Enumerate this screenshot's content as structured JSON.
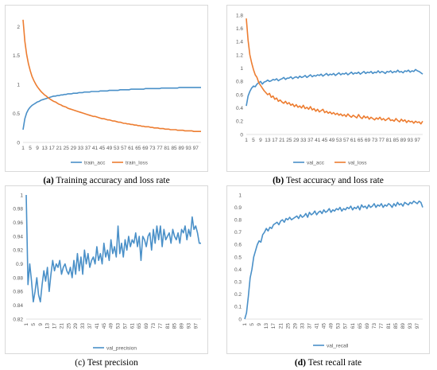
{
  "charts": [
    {
      "id": "a",
      "caption_letter": "(a)",
      "caption_text": " Training accuracy and loss rate",
      "chart_data": {
        "type": "line",
        "ylim": [
          0,
          2.2
        ],
        "yticks": [
          "0",
          "0.5",
          "1",
          "1.5",
          "2"
        ],
        "ytick_values": [
          0,
          0.5,
          1,
          1.5,
          2
        ],
        "xticks": [
          "1",
          "5",
          "9",
          "13",
          "17",
          "21",
          "25",
          "29",
          "33",
          "37",
          "41",
          "45",
          "49",
          "53",
          "57",
          "61",
          "65",
          "69",
          "73",
          "77",
          "81",
          "85",
          "89",
          "93",
          "97"
        ],
        "grid": false,
        "legend": "bottom",
        "series": [
          {
            "name": "train_acc",
            "color": "#4a90c8",
            "values": [
              0.22,
              0.41,
              0.51,
              0.57,
              0.61,
              0.64,
              0.66,
              0.68,
              0.7,
              0.71,
              0.73,
              0.74,
              0.75,
              0.76,
              0.77,
              0.78,
              0.79,
              0.8,
              0.8,
              0.81,
              0.81,
              0.82,
              0.82,
              0.83,
              0.83,
              0.84,
              0.84,
              0.84,
              0.85,
              0.85,
              0.85,
              0.86,
              0.86,
              0.86,
              0.87,
              0.87,
              0.87,
              0.87,
              0.88,
              0.88,
              0.88,
              0.88,
              0.88,
              0.89,
              0.89,
              0.89,
              0.89,
              0.89,
              0.9,
              0.9,
              0.9,
              0.9,
              0.9,
              0.9,
              0.91,
              0.91,
              0.91,
              0.91,
              0.91,
              0.91,
              0.92,
              0.92,
              0.92,
              0.92,
              0.92,
              0.92,
              0.92,
              0.92,
              0.93,
              0.93,
              0.93,
              0.93,
              0.93,
              0.93,
              0.93,
              0.93,
              0.93,
              0.94,
              0.94,
              0.94,
              0.94,
              0.94,
              0.94,
              0.94,
              0.94,
              0.94,
              0.94,
              0.95,
              0.95,
              0.95,
              0.95,
              0.95,
              0.95,
              0.95,
              0.95,
              0.95,
              0.95,
              0.95,
              0.95,
              0.95
            ]
          },
          {
            "name": "train_loss",
            "color": "#ed7d31",
            "values": [
              2.12,
              1.75,
              1.52,
              1.36,
              1.24,
              1.14,
              1.07,
              1.01,
              0.96,
              0.92,
              0.88,
              0.85,
              0.82,
              0.8,
              0.77,
              0.75,
              0.73,
              0.71,
              0.7,
              0.68,
              0.66,
              0.65,
              0.63,
              0.62,
              0.61,
              0.59,
              0.58,
              0.57,
              0.56,
              0.55,
              0.54,
              0.53,
              0.52,
              0.51,
              0.5,
              0.49,
              0.48,
              0.47,
              0.46,
              0.45,
              0.45,
              0.44,
              0.43,
              0.42,
              0.41,
              0.41,
              0.4,
              0.39,
              0.39,
              0.38,
              0.37,
              0.37,
              0.36,
              0.35,
              0.35,
              0.34,
              0.33,
              0.33,
              0.32,
              0.32,
              0.31,
              0.31,
              0.3,
              0.3,
              0.29,
              0.29,
              0.28,
              0.28,
              0.27,
              0.27,
              0.27,
              0.26,
              0.26,
              0.25,
              0.25,
              0.25,
              0.24,
              0.24,
              0.24,
              0.23,
              0.23,
              0.23,
              0.22,
              0.22,
              0.22,
              0.22,
              0.21,
              0.21,
              0.21,
              0.21,
              0.2,
              0.2,
              0.2,
              0.2,
              0.2,
              0.19,
              0.19,
              0.19,
              0.19,
              0.19
            ]
          }
        ]
      }
    },
    {
      "id": "b",
      "caption_letter": "(b)",
      "caption_text": " Test accuracy and loss rate",
      "chart_data": {
        "type": "line",
        "ylim": [
          0,
          1.8
        ],
        "yticks": [
          "0",
          "0.2",
          "0.4",
          "0.6",
          "0.8",
          "1",
          "1.2",
          "1.4",
          "1.6",
          "1.8"
        ],
        "ytick_values": [
          0,
          0.2,
          0.4,
          0.6,
          0.8,
          1,
          1.2,
          1.4,
          1.6,
          1.8
        ],
        "xticks": [
          "1",
          "5",
          "9",
          "13",
          "17",
          "21",
          "25",
          "29",
          "33",
          "37",
          "41",
          "45",
          "49",
          "53",
          "57",
          "61",
          "65",
          "69",
          "73",
          "77",
          "81",
          "85",
          "89",
          "93",
          "97"
        ],
        "grid": false,
        "legend": "bottom",
        "series": [
          {
            "name": "val_acc",
            "color": "#4a90c8",
            "values": [
              0.43,
              0.58,
              0.65,
              0.7,
              0.73,
              0.72,
              0.76,
              0.78,
              0.8,
              0.76,
              0.79,
              0.8,
              0.82,
              0.8,
              0.81,
              0.83,
              0.82,
              0.84,
              0.81,
              0.83,
              0.84,
              0.86,
              0.83,
              0.85,
              0.85,
              0.87,
              0.84,
              0.86,
              0.87,
              0.85,
              0.88,
              0.86,
              0.87,
              0.89,
              0.86,
              0.88,
              0.9,
              0.87,
              0.89,
              0.88,
              0.9,
              0.89,
              0.91,
              0.88,
              0.9,
              0.92,
              0.89,
              0.91,
              0.9,
              0.92,
              0.89,
              0.91,
              0.93,
              0.9,
              0.92,
              0.91,
              0.93,
              0.9,
              0.92,
              0.94,
              0.91,
              0.93,
              0.92,
              0.94,
              0.91,
              0.93,
              0.95,
              0.92,
              0.94,
              0.93,
              0.95,
              0.92,
              0.94,
              0.93,
              0.96,
              0.93,
              0.95,
              0.94,
              0.92,
              0.95,
              0.94,
              0.96,
              0.93,
              0.95,
              0.94,
              0.97,
              0.94,
              0.95,
              0.93,
              0.96,
              0.95,
              0.97,
              0.94,
              0.96,
              0.95,
              0.98,
              0.96,
              0.95,
              0.93,
              0.91
            ]
          },
          {
            "name": "val_loss",
            "color": "#ed7d31",
            "values": [
              1.75,
              1.42,
              1.2,
              1.08,
              0.98,
              0.9,
              0.86,
              0.78,
              0.74,
              0.7,
              0.66,
              0.63,
              0.6,
              0.62,
              0.56,
              0.58,
              0.53,
              0.55,
              0.5,
              0.52,
              0.49,
              0.47,
              0.5,
              0.46,
              0.48,
              0.44,
              0.46,
              0.42,
              0.45,
              0.41,
              0.43,
              0.4,
              0.44,
              0.39,
              0.41,
              0.38,
              0.42,
              0.37,
              0.39,
              0.35,
              0.38,
              0.34,
              0.36,
              0.38,
              0.33,
              0.35,
              0.32,
              0.34,
              0.31,
              0.33,
              0.3,
              0.32,
              0.29,
              0.31,
              0.28,
              0.3,
              0.27,
              0.31,
              0.28,
              0.26,
              0.29,
              0.27,
              0.25,
              0.3,
              0.26,
              0.24,
              0.28,
              0.25,
              0.27,
              0.23,
              0.26,
              0.24,
              0.22,
              0.25,
              0.23,
              0.26,
              0.22,
              0.24,
              0.21,
              0.23,
              0.25,
              0.21,
              0.22,
              0.2,
              0.24,
              0.21,
              0.19,
              0.23,
              0.2,
              0.22,
              0.18,
              0.21,
              0.19,
              0.2,
              0.17,
              0.2,
              0.18,
              0.19,
              0.16,
              0.2
            ]
          }
        ]
      }
    },
    {
      "id": "c",
      "caption_letter": "",
      "caption_text": "(c) Test precision",
      "chart_data": {
        "type": "line",
        "ylim": [
          0.82,
          1
        ],
        "yticks": [
          "0.82",
          "0.84",
          "0.86",
          "0.88",
          "0.9",
          "0.92",
          "0.94",
          "0.96",
          "0.98",
          "1"
        ],
        "ytick_values": [
          0.82,
          0.84,
          0.86,
          0.88,
          0.9,
          0.92,
          0.94,
          0.96,
          0.98,
          1
        ],
        "xticks": [
          "1",
          "5",
          "9",
          "13",
          "17",
          "21",
          "25",
          "29",
          "33",
          "37",
          "41",
          "45",
          "49",
          "53",
          "57",
          "61",
          "65",
          "69",
          "73",
          "77",
          "81",
          "85",
          "89",
          "93",
          "97"
        ],
        "grid": false,
        "legend": "bottom",
        "series": [
          {
            "name": "val_precision",
            "color": "#4a90c8",
            "values": [
              1.0,
              0.87,
              0.9,
              0.875,
              0.845,
              0.86,
              0.88,
              0.855,
              0.845,
              0.87,
              0.89,
              0.875,
              0.895,
              0.86,
              0.885,
              0.905,
              0.89,
              0.9,
              0.895,
              0.905,
              0.885,
              0.895,
              0.9,
              0.89,
              0.885,
              0.895,
              0.88,
              0.905,
              0.885,
              0.915,
              0.89,
              0.91,
              0.885,
              0.92,
              0.9,
              0.915,
              0.895,
              0.905,
              0.91,
              0.9,
              0.925,
              0.905,
              0.915,
              0.9,
              0.93,
              0.91,
              0.92,
              0.905,
              0.935,
              0.915,
              0.925,
              0.91,
              0.955,
              0.915,
              0.93,
              0.91,
              0.935,
              0.92,
              0.94,
              0.925,
              0.935,
              0.93,
              0.945,
              0.925,
              0.94,
              0.905,
              0.94,
              0.935,
              0.925,
              0.94,
              0.945,
              0.92,
              0.95,
              0.93,
              0.955,
              0.935,
              0.955,
              0.925,
              0.95,
              0.935,
              0.94,
              0.945,
              0.93,
              0.95,
              0.94,
              0.935,
              0.945,
              0.93,
              0.95,
              0.945,
              0.955,
              0.935,
              0.95,
              0.94,
              0.968,
              0.95,
              0.955,
              0.945,
              0.93,
              0.93
            ]
          }
        ]
      }
    },
    {
      "id": "d",
      "caption_letter": "(d)",
      "caption_text": " Test recall rate",
      "chart_data": {
        "type": "line",
        "ylim": [
          0,
          1
        ],
        "yticks": [
          "0",
          "0.1",
          "0.2",
          "0.3",
          "0.4",
          "0.5",
          "0.6",
          "0.7",
          "0.8",
          "0.9",
          "1"
        ],
        "ytick_values": [
          0,
          0.1,
          0.2,
          0.3,
          0.4,
          0.5,
          0.6,
          0.7,
          0.8,
          0.9,
          1
        ],
        "xticks": [
          "1",
          "5",
          "9",
          "13",
          "17",
          "21",
          "25",
          "29",
          "33",
          "37",
          "41",
          "45",
          "49",
          "53",
          "57",
          "61",
          "65",
          "69",
          "73",
          "77",
          "81",
          "85",
          "89",
          "93",
          "97"
        ],
        "grid": false,
        "legend": "bottom",
        "series": [
          {
            "name": "val_recall",
            "color": "#4a90c8",
            "values": [
              0.0,
              0.05,
              0.18,
              0.33,
              0.4,
              0.5,
              0.55,
              0.6,
              0.63,
              0.62,
              0.68,
              0.7,
              0.73,
              0.71,
              0.74,
              0.73,
              0.76,
              0.77,
              0.78,
              0.76,
              0.79,
              0.8,
              0.78,
              0.81,
              0.8,
              0.82,
              0.8,
              0.81,
              0.82,
              0.83,
              0.81,
              0.84,
              0.82,
              0.83,
              0.85,
              0.82,
              0.86,
              0.84,
              0.85,
              0.87,
              0.84,
              0.86,
              0.87,
              0.85,
              0.88,
              0.86,
              0.87,
              0.89,
              0.86,
              0.88,
              0.87,
              0.89,
              0.88,
              0.9,
              0.87,
              0.89,
              0.88,
              0.9,
              0.89,
              0.91,
              0.88,
              0.9,
              0.89,
              0.91,
              0.88,
              0.92,
              0.9,
              0.91,
              0.89,
              0.92,
              0.9,
              0.91,
              0.93,
              0.9,
              0.92,
              0.91,
              0.93,
              0.9,
              0.92,
              0.91,
              0.93,
              0.92,
              0.9,
              0.93,
              0.91,
              0.94,
              0.92,
              0.93,
              0.91,
              0.94,
              0.93,
              0.92,
              0.94,
              0.93,
              0.95,
              0.94,
              0.93,
              0.95,
              0.94,
              0.9
            ]
          }
        ]
      }
    }
  ]
}
